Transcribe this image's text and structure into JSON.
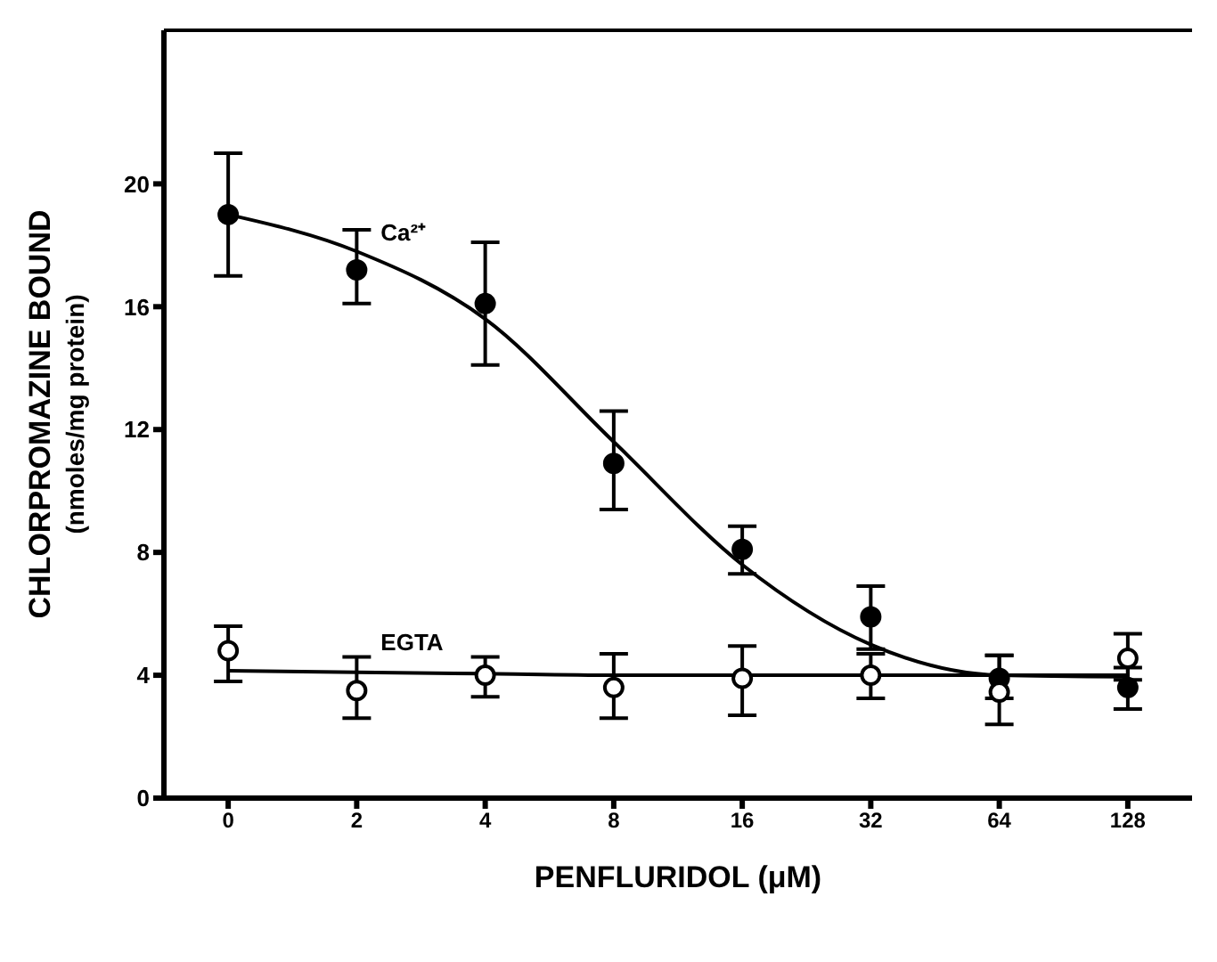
{
  "chart_data": {
    "type": "scatter",
    "xlabel": "PENFLURIDOL (μM)",
    "ylabel": "CHLORPROMAZINE BOUND\n(nmoles/mg protein)",
    "categories": [
      "0",
      "2",
      "4",
      "8",
      "16",
      "32",
      "64",
      "128"
    ],
    "ylim": [
      0,
      25
    ],
    "yticks": [
      0,
      4,
      8,
      12,
      16,
      20
    ],
    "grid": false,
    "legend": false,
    "series": [
      {
        "name": "Ca²⁺",
        "color": "#000000",
        "marker": "circle",
        "values": [
          19.0,
          17.2,
          16.1,
          10.9,
          8.1,
          5.9,
          3.9,
          3.6
        ],
        "errors": [
          [
            17.0,
            21.0
          ],
          [
            16.1,
            18.5
          ],
          [
            14.1,
            18.1
          ],
          [
            9.4,
            12.6
          ],
          [
            7.3,
            8.85
          ],
          [
            4.85,
            6.9
          ],
          [
            3.25,
            4.65
          ],
          [
            2.9,
            4.25
          ]
        ]
      },
      {
        "name": "EGTA",
        "color": "#000000",
        "marker": "circle",
        "values": [
          4.8,
          3.5,
          4.0,
          3.6,
          3.9,
          4.0,
          3.45,
          4.55
        ],
        "errors": [
          [
            3.8,
            5.6
          ],
          [
            2.6,
            4.6
          ],
          [
            3.3,
            4.6
          ],
          [
            2.6,
            4.7
          ],
          [
            2.7,
            4.95
          ],
          [
            3.25,
            4.7
          ],
          [
            2.4,
            4.65
          ],
          [
            3.85,
            5.35
          ]
        ]
      },
      {
        "type": "line",
        "color": "#000000",
        "marker": "none",
        "values": [
          19.0,
          17.8,
          15.6,
          11.6,
          7.6,
          5.0,
          4.0,
          3.95
        ]
      },
      {
        "type": "line",
        "color": "#000000",
        "marker": "none",
        "values": [
          4.15,
          4.1,
          4.05,
          4.0,
          4.0,
          4.0,
          4.0,
          4.0
        ]
      }
    ]
  }
}
